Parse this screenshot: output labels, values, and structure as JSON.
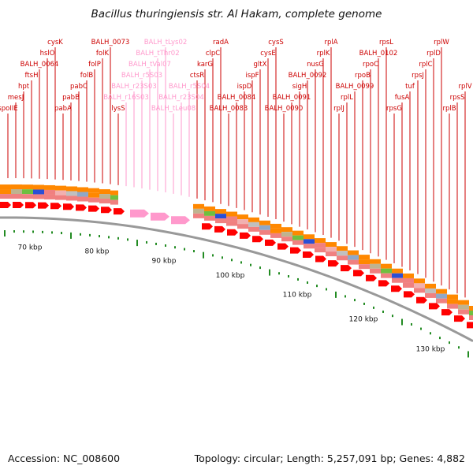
{
  "title": "Bacillus thuringiensis str. Al Hakam, complete genome",
  "footer": {
    "accession": "Accession: NC_008600",
    "topology": "Topology: circular; Length: 5,257,091 bp; Genes: 4,882"
  },
  "colors": {
    "gene": "#ff0000",
    "rna_gene": "#ff99cc",
    "tick": "#228b22",
    "backbone": "#999999",
    "labels": "#cc0000"
  },
  "scale_labels": [
    "70 kbp",
    "80 kbp",
    "90 kbp",
    "100 kbp",
    "110 kbp",
    "120 kbp",
    "130 kbp"
  ],
  "gene_labels": [
    {
      "text": "spoIIE",
      "kind": "protein"
    },
    {
      "text": "mesJ",
      "kind": "protein"
    },
    {
      "text": "hpt",
      "kind": "protein"
    },
    {
      "text": "ftsH",
      "kind": "protein"
    },
    {
      "text": "BALH_0064",
      "kind": "protein"
    },
    {
      "text": "hslO",
      "kind": "protein"
    },
    {
      "text": "cysK",
      "kind": "protein"
    },
    {
      "text": "pabA",
      "kind": "protein"
    },
    {
      "text": "pabB",
      "kind": "protein"
    },
    {
      "text": "pabC",
      "kind": "protein"
    },
    {
      "text": "folB",
      "kind": "protein"
    },
    {
      "text": "folP",
      "kind": "protein"
    },
    {
      "text": "folK",
      "kind": "protein"
    },
    {
      "text": "BALH_0073",
      "kind": "protein"
    },
    {
      "text": "lysS",
      "kind": "protein"
    },
    {
      "text": "BALH_r16S03",
      "kind": "rna"
    },
    {
      "text": "BALH_r23S03",
      "kind": "rna"
    },
    {
      "text": "BALH_r5S03",
      "kind": "rna"
    },
    {
      "text": "BALH_tVal07",
      "kind": "rna"
    },
    {
      "text": "BALH_tThr02",
      "kind": "rna"
    },
    {
      "text": "BALH_tLys02",
      "kind": "rna"
    },
    {
      "text": "BALH_tLeu08",
      "kind": "rna"
    },
    {
      "text": "BALH_r23S04",
      "kind": "rna"
    },
    {
      "text": "BALH_r5S04",
      "kind": "rna"
    },
    {
      "text": "ctsR",
      "kind": "protein"
    },
    {
      "text": "karG",
      "kind": "protein"
    },
    {
      "text": "clpC",
      "kind": "protein"
    },
    {
      "text": "radA",
      "kind": "protein"
    },
    {
      "text": "BALH_0083",
      "kind": "protein"
    },
    {
      "text": "BALH_0084",
      "kind": "protein"
    },
    {
      "text": "ispD",
      "kind": "protein"
    },
    {
      "text": "ispF",
      "kind": "protein"
    },
    {
      "text": "gltX",
      "kind": "protein"
    },
    {
      "text": "cysE",
      "kind": "protein"
    },
    {
      "text": "cysS",
      "kind": "protein"
    },
    {
      "text": "BALH_0090",
      "kind": "protein"
    },
    {
      "text": "BALH_0091",
      "kind": "protein"
    },
    {
      "text": "sigH",
      "kind": "protein"
    },
    {
      "text": "BALH_0092",
      "kind": "protein"
    },
    {
      "text": "nusG",
      "kind": "protein"
    },
    {
      "text": "rplK",
      "kind": "protein"
    },
    {
      "text": "rplA",
      "kind": "protein"
    },
    {
      "text": "rplJ",
      "kind": "protein"
    },
    {
      "text": "rplL",
      "kind": "protein"
    },
    {
      "text": "BALH_0099",
      "kind": "protein"
    },
    {
      "text": "rpoB",
      "kind": "protein"
    },
    {
      "text": "rpoC",
      "kind": "protein"
    },
    {
      "text": "BALH_0102",
      "kind": "protein"
    },
    {
      "text": "rpsL",
      "kind": "protein"
    },
    {
      "text": "rpsG",
      "kind": "protein"
    },
    {
      "text": "fusA",
      "kind": "protein"
    },
    {
      "text": "tuf",
      "kind": "protein"
    },
    {
      "text": "rpsJ",
      "kind": "protein"
    },
    {
      "text": "rplC",
      "kind": "protein"
    },
    {
      "text": "rplD",
      "kind": "protein"
    },
    {
      "text": "rplW",
      "kind": "protein"
    },
    {
      "text": "rplB",
      "kind": "protein"
    },
    {
      "text": "rpsS",
      "kind": "protein"
    },
    {
      "text": "rplV",
      "kind": "protein"
    }
  ]
}
